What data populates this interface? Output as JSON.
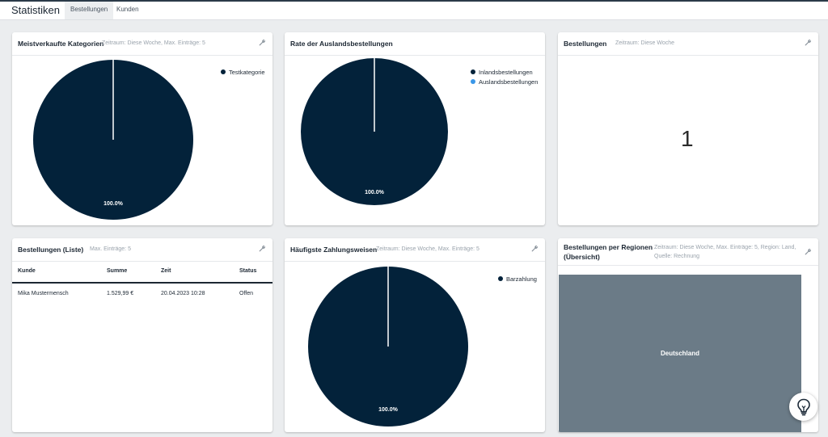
{
  "header": {
    "title": "Statistiken",
    "tabs": [
      {
        "label": "Bestellungen",
        "active": true
      },
      {
        "label": "Kunden",
        "active": false
      }
    ]
  },
  "cards": {
    "top_categories": {
      "title": "Meistverkaufte Kategorien",
      "meta": "Zeitraum: Diese Woche, Max. Einträge: 5",
      "legend": [
        "Testkategorie"
      ],
      "slice_label": "100.0%"
    },
    "foreign_rate": {
      "title": "Rate der Auslandsbestellungen",
      "legend": [
        "Inlandsbestellungen",
        "Auslandsbestellungen"
      ],
      "slice_label": "100.0%"
    },
    "orders_count": {
      "title": "Bestellungen",
      "meta": "Zeitraum: Diese Woche",
      "value": "1"
    },
    "orders_list": {
      "title": "Bestellungen (Liste)",
      "meta": "Max. Einträge: 5",
      "columns": [
        "Kunde",
        "Summe",
        "Zeit",
        "Status"
      ],
      "rows": [
        [
          "Mika Mustermensch",
          "1.529,99 €",
          "20.04.2023 10:28",
          "Offen"
        ]
      ]
    },
    "payment_methods": {
      "title": "Häufigste Zahlungsweisen",
      "meta": "Zeitraum: Diese Woche, Max. Einträge: 5",
      "legend": [
        "Barzahlung"
      ],
      "slice_label": "100.0%"
    },
    "regions": {
      "title_line1": "Bestellungen per Regionen",
      "title_line2": "(Übersicht)",
      "meta_line1": "Zeitraum: Diese Woche, Max. Einträge: 5, Region: Land,",
      "meta_line2": "Quelle: Rechnung",
      "region": "Deutschland"
    }
  },
  "colors": {
    "pie_primary": "#03223a",
    "pie_secondary": "#3a97e8",
    "treemap": "#6b7b87",
    "help_icon": "#1c2a38"
  },
  "icons": {
    "settings": "wrench-icon",
    "help": "lightbulb-icon"
  },
  "chart_data": [
    {
      "type": "pie",
      "categories": [
        "Testkategorie"
      ],
      "values": [
        100.0
      ]
    },
    {
      "type": "pie",
      "categories": [
        "Inlandsbestellungen",
        "Auslandsbestellungen"
      ],
      "values": [
        100.0,
        0.0
      ]
    },
    {
      "type": "pie",
      "categories": [
        "Barzahlung"
      ],
      "values": [
        100.0
      ]
    }
  ]
}
